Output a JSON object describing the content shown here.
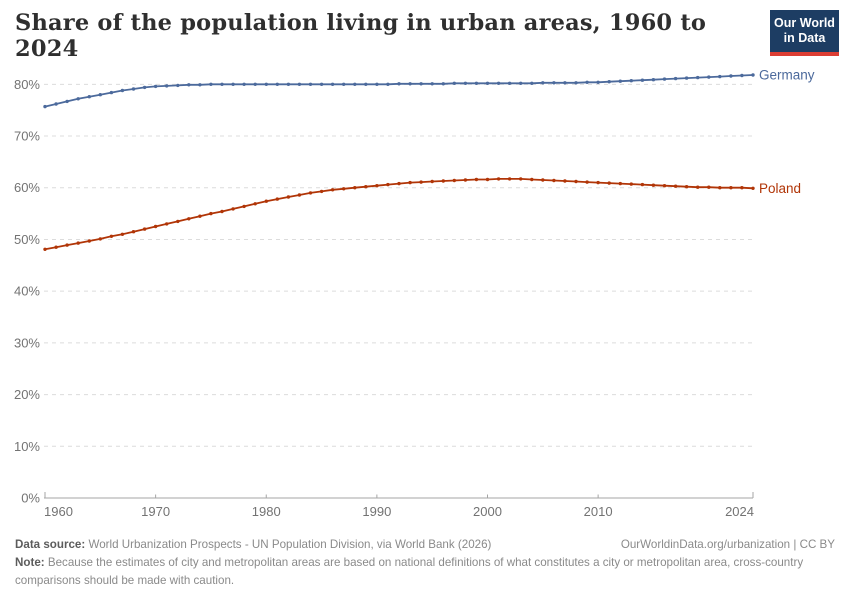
{
  "header": {
    "title": "Share of the population living in urban areas, 1960 to 2024",
    "logo_line1": "Our World",
    "logo_line2": "in Data",
    "logo_bg": "#1d3d63",
    "logo_bar": "#dc3d33"
  },
  "chart_data": {
    "type": "line",
    "title": "Share of the population living in urban areas, 1960 to 2024",
    "xlabel": "",
    "ylabel": "",
    "ylim": [
      0,
      80
    ],
    "yticks": [
      0,
      10,
      20,
      30,
      40,
      50,
      60,
      70,
      80
    ],
    "ytick_suffix": "%",
    "xticks": [
      1960,
      1970,
      1980,
      1990,
      2000,
      2010,
      2024
    ],
    "grid": "horizontal-dashed",
    "legend_position": "line-end-labels",
    "x": [
      1960,
      1961,
      1962,
      1963,
      1964,
      1965,
      1966,
      1967,
      1968,
      1969,
      1970,
      1971,
      1972,
      1973,
      1974,
      1975,
      1976,
      1977,
      1978,
      1979,
      1980,
      1981,
      1982,
      1983,
      1984,
      1985,
      1986,
      1987,
      1988,
      1989,
      1990,
      1991,
      1992,
      1993,
      1994,
      1995,
      1996,
      1997,
      1998,
      1999,
      2000,
      2001,
      2002,
      2003,
      2004,
      2005,
      2006,
      2007,
      2008,
      2009,
      2010,
      2011,
      2012,
      2013,
      2014,
      2015,
      2016,
      2017,
      2018,
      2019,
      2020,
      2021,
      2022,
      2023,
      2024
    ],
    "series": [
      {
        "name": "Germany",
        "color": "#4C6A9C",
        "values": [
          75.7,
          76.2,
          76.7,
          77.2,
          77.6,
          78.0,
          78.4,
          78.8,
          79.1,
          79.4,
          79.6,
          79.7,
          79.8,
          79.9,
          79.9,
          80.0,
          80.0,
          80.0,
          80.0,
          80.0,
          80.0,
          80.0,
          80.0,
          80.0,
          80.0,
          80.0,
          80.0,
          80.0,
          80.0,
          80.0,
          80.0,
          80.0,
          80.1,
          80.1,
          80.1,
          80.1,
          80.1,
          80.2,
          80.2,
          80.2,
          80.2,
          80.2,
          80.2,
          80.2,
          80.2,
          80.3,
          80.3,
          80.3,
          80.3,
          80.4,
          80.4,
          80.5,
          80.6,
          80.7,
          80.8,
          80.9,
          81.0,
          81.1,
          81.2,
          81.3,
          81.4,
          81.5,
          81.6,
          81.7,
          81.8
        ]
      },
      {
        "name": "Poland",
        "color": "#B13507",
        "values": [
          48.1,
          48.5,
          48.9,
          49.3,
          49.7,
          50.1,
          50.6,
          51.0,
          51.5,
          52.0,
          52.5,
          53.0,
          53.5,
          54.0,
          54.5,
          55.0,
          55.4,
          55.9,
          56.4,
          56.9,
          57.4,
          57.8,
          58.2,
          58.6,
          59.0,
          59.3,
          59.6,
          59.8,
          60.0,
          60.2,
          60.4,
          60.6,
          60.8,
          61.0,
          61.1,
          61.2,
          61.3,
          61.4,
          61.5,
          61.6,
          61.6,
          61.7,
          61.7,
          61.7,
          61.6,
          61.5,
          61.4,
          61.3,
          61.2,
          61.1,
          61.0,
          60.9,
          60.8,
          60.7,
          60.6,
          60.5,
          60.4,
          60.3,
          60.2,
          60.1,
          60.1,
          60.0,
          60.0,
          60.0,
          59.9
        ]
      }
    ]
  },
  "footer": {
    "datasource_label": "Data source:",
    "datasource_text": " World Urbanization Prospects - UN Population Division, via World Bank (2026)",
    "link_text": "OurWorldinData.org/urbanization | CC BY",
    "note_label": "Note:",
    "note_text": " Because the estimates of city and metropolitan areas are based on national definitions of what constitutes a city or metropolitan area, cross-country comparisons should be made with caution."
  }
}
